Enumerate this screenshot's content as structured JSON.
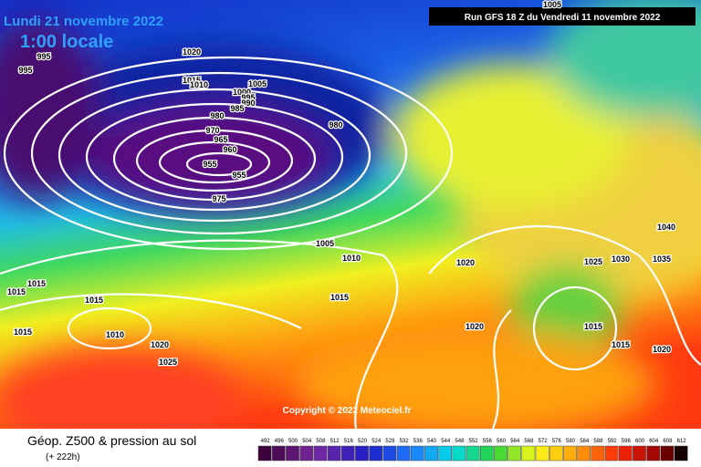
{
  "header": {
    "date": "Lundi 21 novembre 2022",
    "time": "1:00 locale",
    "run": "Run GFS 18 Z du Vendredi 11 novembre 2022"
  },
  "copyright": "Copyright © 2022 Meteociel.fr",
  "footer": {
    "title": "Géop. Z500 & pression au sol",
    "lead": "(+ 222h)"
  },
  "legend": {
    "values": [
      492,
      496,
      500,
      504,
      508,
      512,
      516,
      520,
      524,
      528,
      532,
      536,
      540,
      544,
      548,
      552,
      556,
      560,
      564,
      568,
      572,
      576,
      580,
      584,
      588,
      592,
      596,
      600,
      604,
      608,
      612
    ]
  },
  "isobars": {
    "labels": [
      995,
      995,
      1020,
      1015,
      1010,
      1005,
      1000,
      995,
      990,
      985,
      980,
      980,
      970,
      965,
      960,
      955,
      955,
      975,
      1005,
      1010,
      1020,
      1025,
      1030,
      1035,
      1040,
      1015,
      1015,
      1015,
      1015,
      1020,
      1015,
      1015,
      1020,
      1015,
      1010,
      1020,
      1025,
      1005
    ]
  }
}
